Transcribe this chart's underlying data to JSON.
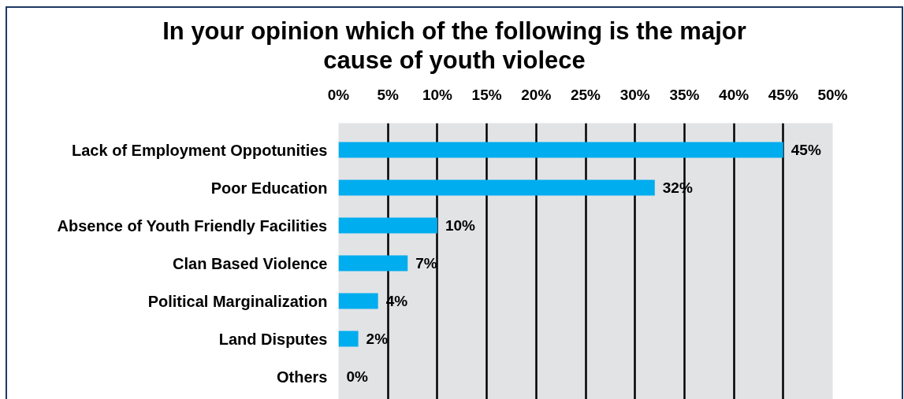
{
  "chart_data": {
    "type": "bar",
    "orientation": "horizontal",
    "title": "In your opinion which of the following is the major cause of youth violece",
    "categories": [
      "Lack of Employment Oppotunities",
      "Poor Education",
      "Absence of Youth Friendly Facilities",
      "Clan Based Violence",
      "Political Marginalization",
      "Land Disputes",
      "Others"
    ],
    "values": [
      45,
      32,
      10,
      7,
      4,
      2,
      0
    ],
    "color": "#00adef",
    "value_labels": [
      "45%",
      "32%",
      "10%",
      "7%",
      "4%",
      "2%",
      "0%"
    ],
    "xlim": [
      0,
      50
    ],
    "xticks": [
      {
        "value": 0,
        "label": "0%"
      },
      {
        "value": 5,
        "label": "5%"
      },
      {
        "value": 10,
        "label": "10%"
      },
      {
        "value": 15,
        "label": "15%"
      },
      {
        "value": 20,
        "label": "20%"
      },
      {
        "value": 25,
        "label": "25%"
      },
      {
        "value": 30,
        "label": "30%"
      },
      {
        "value": 35,
        "label": "35%"
      },
      {
        "value": 40,
        "label": "40%"
      },
      {
        "value": 45,
        "label": "45%"
      },
      {
        "value": 50,
        "label": "50%"
      }
    ],
    "grid": "x"
  }
}
